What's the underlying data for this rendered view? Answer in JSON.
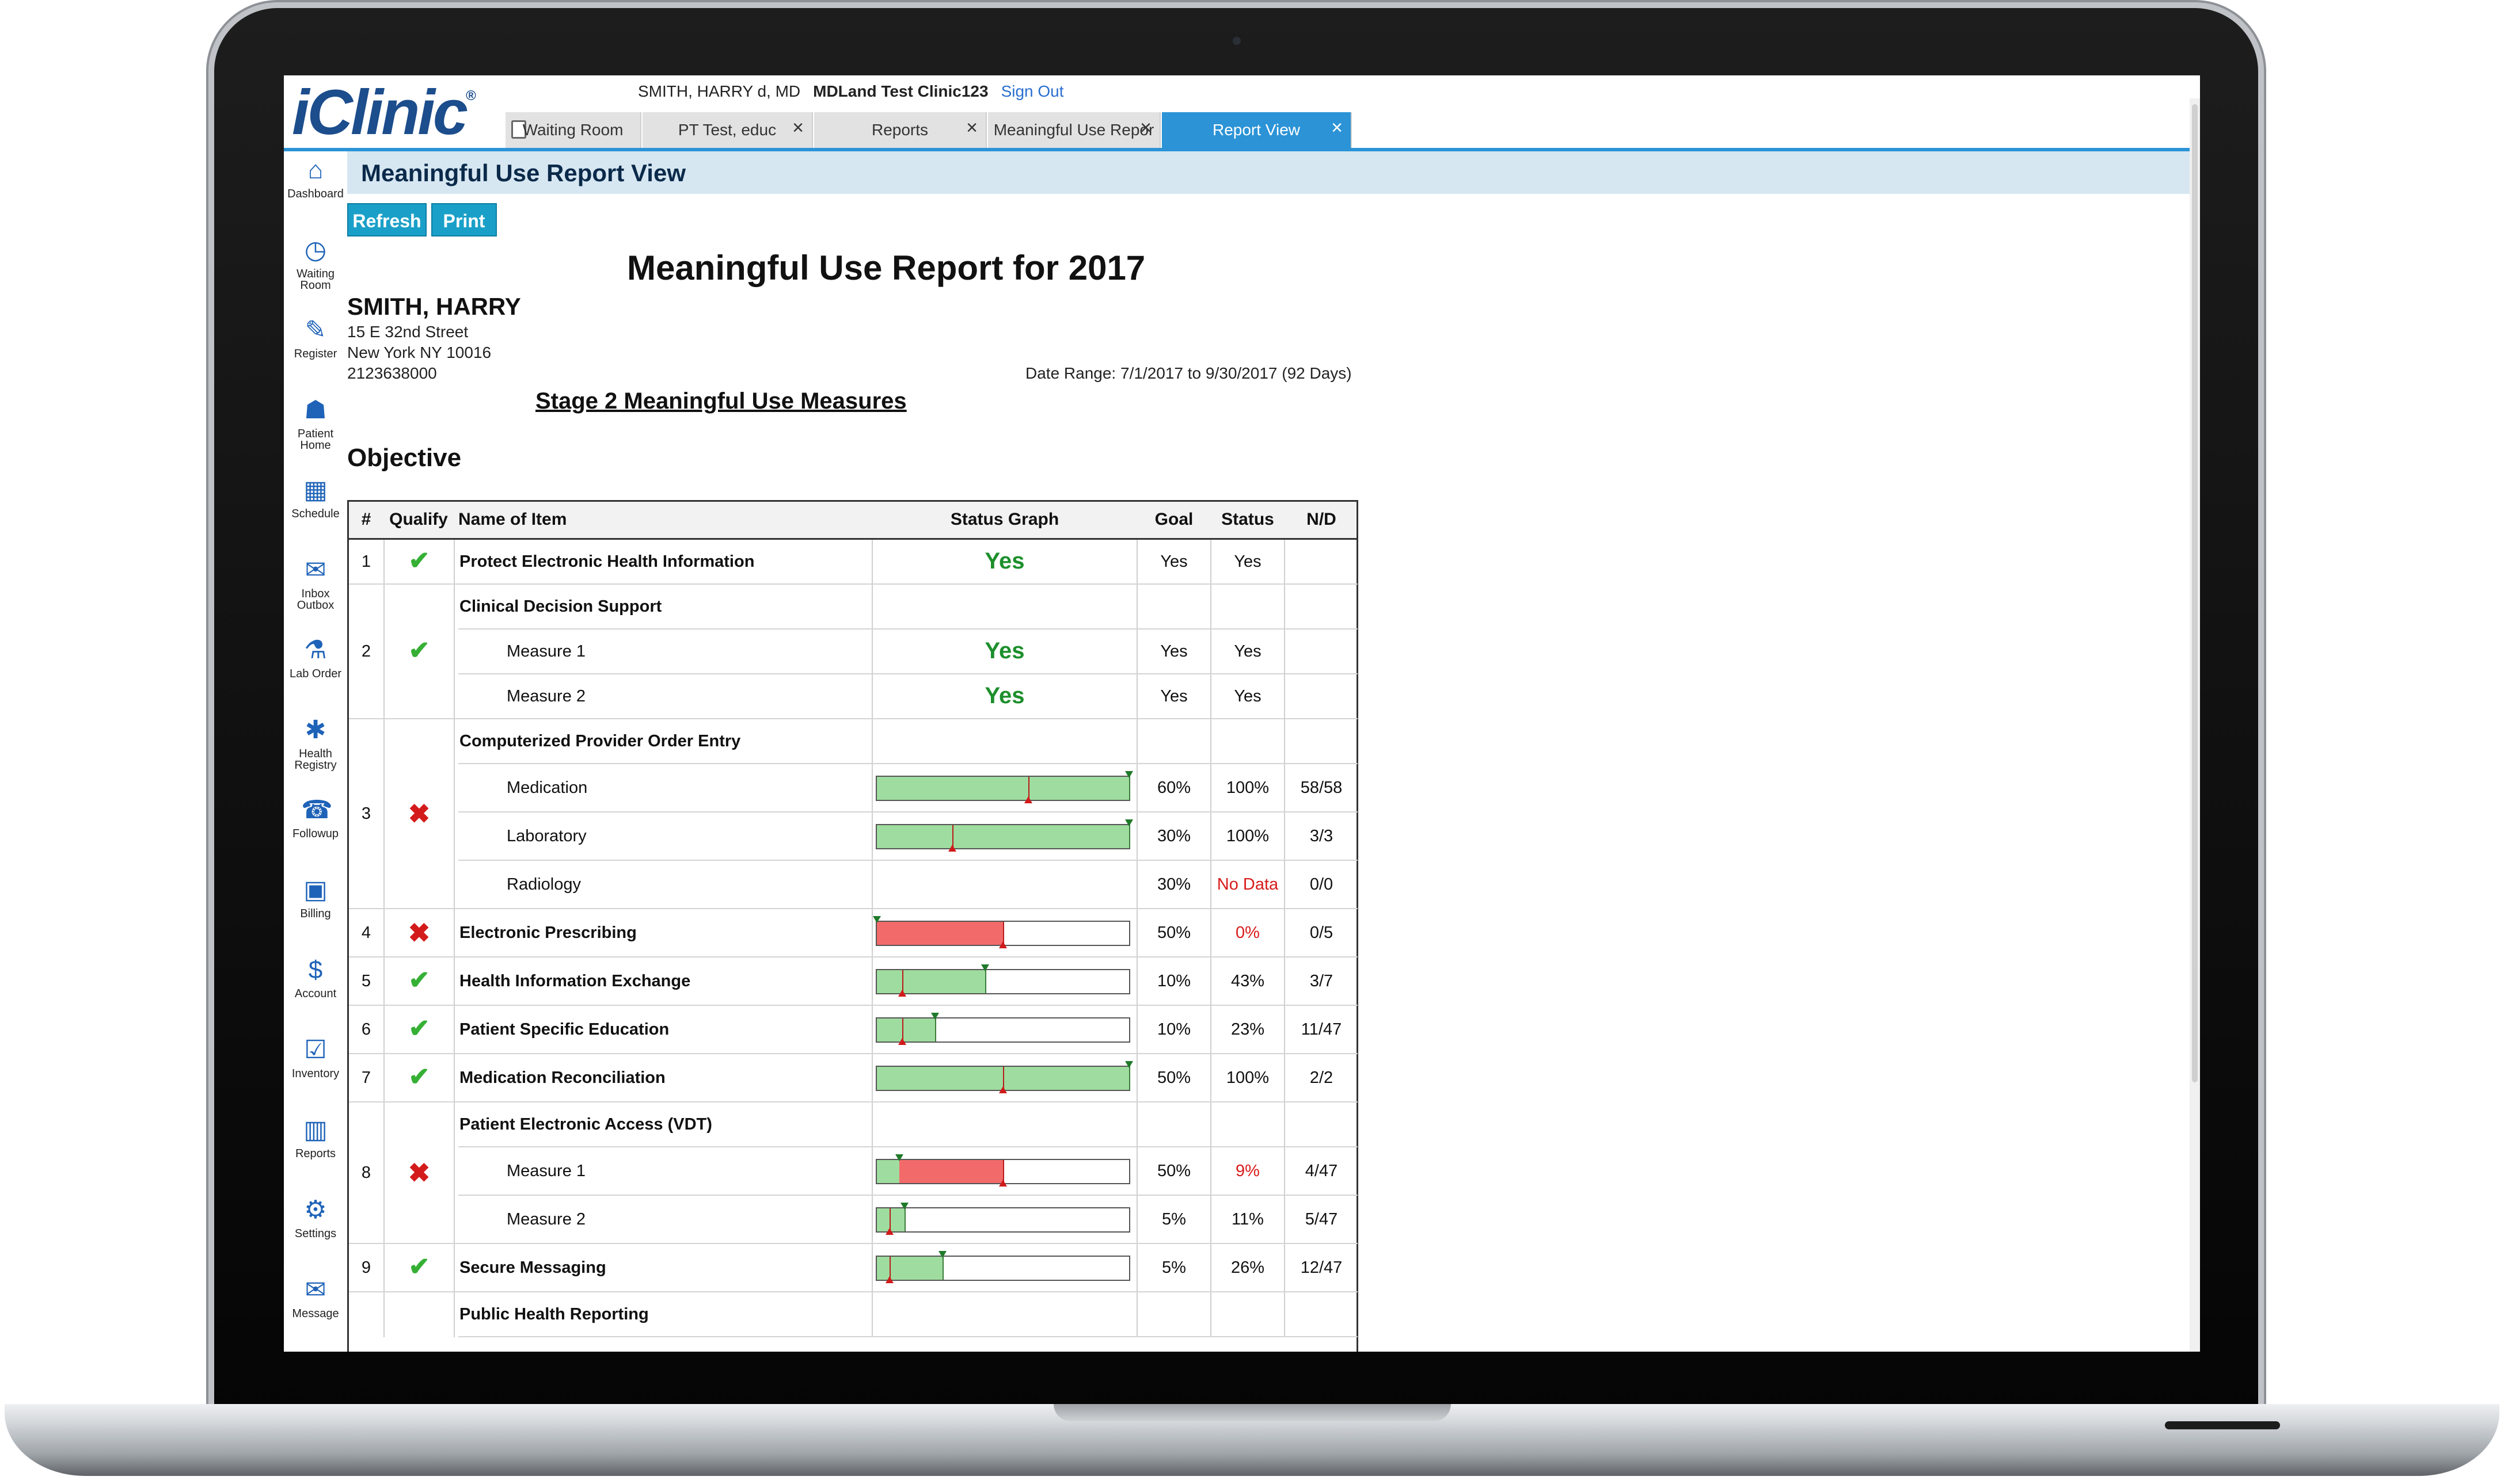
{
  "app": {
    "logo": "iClinic",
    "logo_mark": "®",
    "user": "SMITH, HARRY d, MD",
    "clinic": "MDLand Test Clinic123",
    "sign_out": "Sign Out"
  },
  "tabs": [
    {
      "label": "Waiting Room",
      "closable": false,
      "active": false
    },
    {
      "label": "PT Test, educ",
      "closable": true,
      "active": false
    },
    {
      "label": "Reports",
      "closable": true,
      "active": false
    },
    {
      "label": "Meaningful Use Repor",
      "closable": true,
      "active": false
    },
    {
      "label": "Report View",
      "closable": true,
      "active": true
    }
  ],
  "tab_close": "×",
  "page_title": "Meaningful Use Report View",
  "sidebar": [
    {
      "label": "Dashboard",
      "icon": "dashboard-icon",
      "glyph": "⌂"
    },
    {
      "label": "Waiting Room",
      "icon": "clock-icon",
      "glyph": "◷"
    },
    {
      "label": "Register",
      "icon": "register-icon",
      "glyph": "✎"
    },
    {
      "label": "Patient Home",
      "icon": "patient-home-icon",
      "glyph": "☗"
    },
    {
      "label": "Schedule",
      "icon": "calendar-icon",
      "glyph": "▦"
    },
    {
      "label": "Inbox Outbox",
      "icon": "inbox-icon",
      "glyph": "✉"
    },
    {
      "label": "Lab Order",
      "icon": "flask-icon",
      "glyph": "⚗"
    },
    {
      "label": "Health Registry",
      "icon": "registry-icon",
      "glyph": "✱"
    },
    {
      "label": "Followup",
      "icon": "phone-icon",
      "glyph": "☎"
    },
    {
      "label": "Billing",
      "icon": "billing-icon",
      "glyph": "▣"
    },
    {
      "label": "Account",
      "icon": "dollar-icon",
      "glyph": "$"
    },
    {
      "label": "Inventory",
      "icon": "checklist-icon",
      "glyph": "☑"
    },
    {
      "label": "Reports",
      "icon": "chart-icon",
      "glyph": "▥"
    },
    {
      "label": "Settings",
      "icon": "gear-icon",
      "glyph": "⚙"
    },
    {
      "label": "Message",
      "icon": "message-icon",
      "glyph": "✉"
    }
  ],
  "buttons": {
    "refresh": "Refresh",
    "print": "Print"
  },
  "report": {
    "title": "Meaningful Use Report for 2017",
    "patient_name": "SMITH, HARRY",
    "address_line1": "15 E 32nd Street",
    "address_line2": "New York NY 10016",
    "phone": "2123638000",
    "date_range": "Date Range: 7/1/2017 to 9/30/2017 (92 Days)",
    "stage": "Stage 2 Meaningful Use Measures",
    "section": "Objective"
  },
  "table": {
    "headers": {
      "num": "#",
      "qualify": "Qualify",
      "name": "Name of Item",
      "graph": "Status Graph",
      "goal": "Goal",
      "status": "Status",
      "nd": "N/D"
    },
    "groups": [
      {
        "num": "1",
        "qualify": "pass"
      },
      {
        "num": "2",
        "qualify": "pass"
      },
      {
        "num": "3",
        "qualify": "fail"
      },
      {
        "num": "4",
        "qualify": "fail"
      },
      {
        "num": "5",
        "qualify": "pass"
      },
      {
        "num": "6",
        "qualify": "pass"
      },
      {
        "num": "7",
        "qualify": "pass"
      },
      {
        "num": "8",
        "qualify": "fail"
      },
      {
        "num": "9",
        "qualify": "pass"
      }
    ],
    "rows": [
      {
        "name": "Protect Electronic Health Information",
        "bold": true,
        "sub": false,
        "graph": "yes",
        "graph_text": "Yes",
        "goal": "Yes",
        "status": "Yes",
        "nd": "",
        "status_red": false
      },
      {
        "name": "Clinical Decision Support",
        "bold": true,
        "sub": false,
        "graph": "none",
        "goal": "",
        "status": "",
        "nd": "",
        "status_red": false
      },
      {
        "name": "Measure 1",
        "bold": false,
        "sub": true,
        "graph": "yes",
        "graph_text": "Yes",
        "goal": "Yes",
        "status": "Yes",
        "nd": "",
        "status_red": false
      },
      {
        "name": "Measure 2",
        "bold": false,
        "sub": true,
        "graph": "yes",
        "graph_text": "Yes",
        "goal": "Yes",
        "status": "Yes",
        "nd": "",
        "status_red": false
      },
      {
        "name": "Computerized Provider Order Entry",
        "bold": true,
        "sub": false,
        "graph": "none",
        "goal": "",
        "status": "",
        "nd": "",
        "status_red": false
      },
      {
        "name": "Medication",
        "bold": false,
        "sub": true,
        "graph": "bar",
        "color": "green",
        "goal_pct": 0.6,
        "value_pct": 1.0,
        "goal": "60%",
        "status": "100%",
        "nd": "58/58",
        "status_red": false
      },
      {
        "name": "Laboratory",
        "bold": false,
        "sub": true,
        "graph": "bar",
        "color": "green",
        "goal_pct": 0.3,
        "value_pct": 1.0,
        "goal": "30%",
        "status": "100%",
        "nd": "3/3",
        "status_red": false
      },
      {
        "name": "Radiology",
        "bold": false,
        "sub": true,
        "graph": "none",
        "goal": "30%",
        "status": "No Data",
        "nd": "0/0",
        "status_red": true
      },
      {
        "name": "Electronic Prescribing",
        "bold": true,
        "sub": false,
        "graph": "bar",
        "color": "red",
        "goal_pct": 0.5,
        "value_pct": 0.0,
        "goal": "50%",
        "status": "0%",
        "nd": "0/5",
        "status_red": true
      },
      {
        "name": "Health Information Exchange",
        "bold": true,
        "sub": false,
        "graph": "bar",
        "color": "green",
        "goal_pct": 0.1,
        "value_pct": 0.43,
        "goal": "10%",
        "status": "43%",
        "nd": "3/7",
        "status_red": false
      },
      {
        "name": "Patient Specific Education",
        "bold": true,
        "sub": false,
        "graph": "bar",
        "color": "green",
        "goal_pct": 0.1,
        "value_pct": 0.23,
        "goal": "10%",
        "status": "23%",
        "nd": "11/47",
        "status_red": false
      },
      {
        "name": "Medication Reconciliation",
        "bold": true,
        "sub": false,
        "graph": "bar",
        "color": "green",
        "goal_pct": 0.5,
        "value_pct": 1.0,
        "goal": "50%",
        "status": "100%",
        "nd": "2/2",
        "status_red": false
      },
      {
        "name": "Patient Electronic Access (VDT)",
        "bold": true,
        "sub": false,
        "graph": "none",
        "goal": "",
        "status": "",
        "nd": "",
        "status_red": false
      },
      {
        "name": "Measure 1",
        "bold": false,
        "sub": true,
        "graph": "bar",
        "color": "red",
        "goal_pct": 0.5,
        "value_pct": 0.09,
        "goal": "50%",
        "status": "9%",
        "nd": "4/47",
        "status_red": true
      },
      {
        "name": "Measure 2",
        "bold": false,
        "sub": true,
        "graph": "bar",
        "color": "green",
        "goal_pct": 0.05,
        "value_pct": 0.11,
        "goal": "5%",
        "status": "11%",
        "nd": "5/47",
        "status_red": false
      },
      {
        "name": "Secure Messaging",
        "bold": true,
        "sub": false,
        "graph": "bar",
        "color": "green",
        "goal_pct": 0.05,
        "value_pct": 0.26,
        "goal": "5%",
        "status": "26%",
        "nd": "12/47",
        "status_red": false
      },
      {
        "name": "Public Health Reporting",
        "bold": true,
        "sub": false,
        "graph": "none",
        "goal": "",
        "status": "",
        "nd": "",
        "status_red": false
      }
    ]
  },
  "colors": {
    "accent": "#2b93d6",
    "pass": "#35b035",
    "fail": "#d41b1b",
    "bar_green": "#9fdc9f",
    "bar_red": "#f36a6a"
  }
}
